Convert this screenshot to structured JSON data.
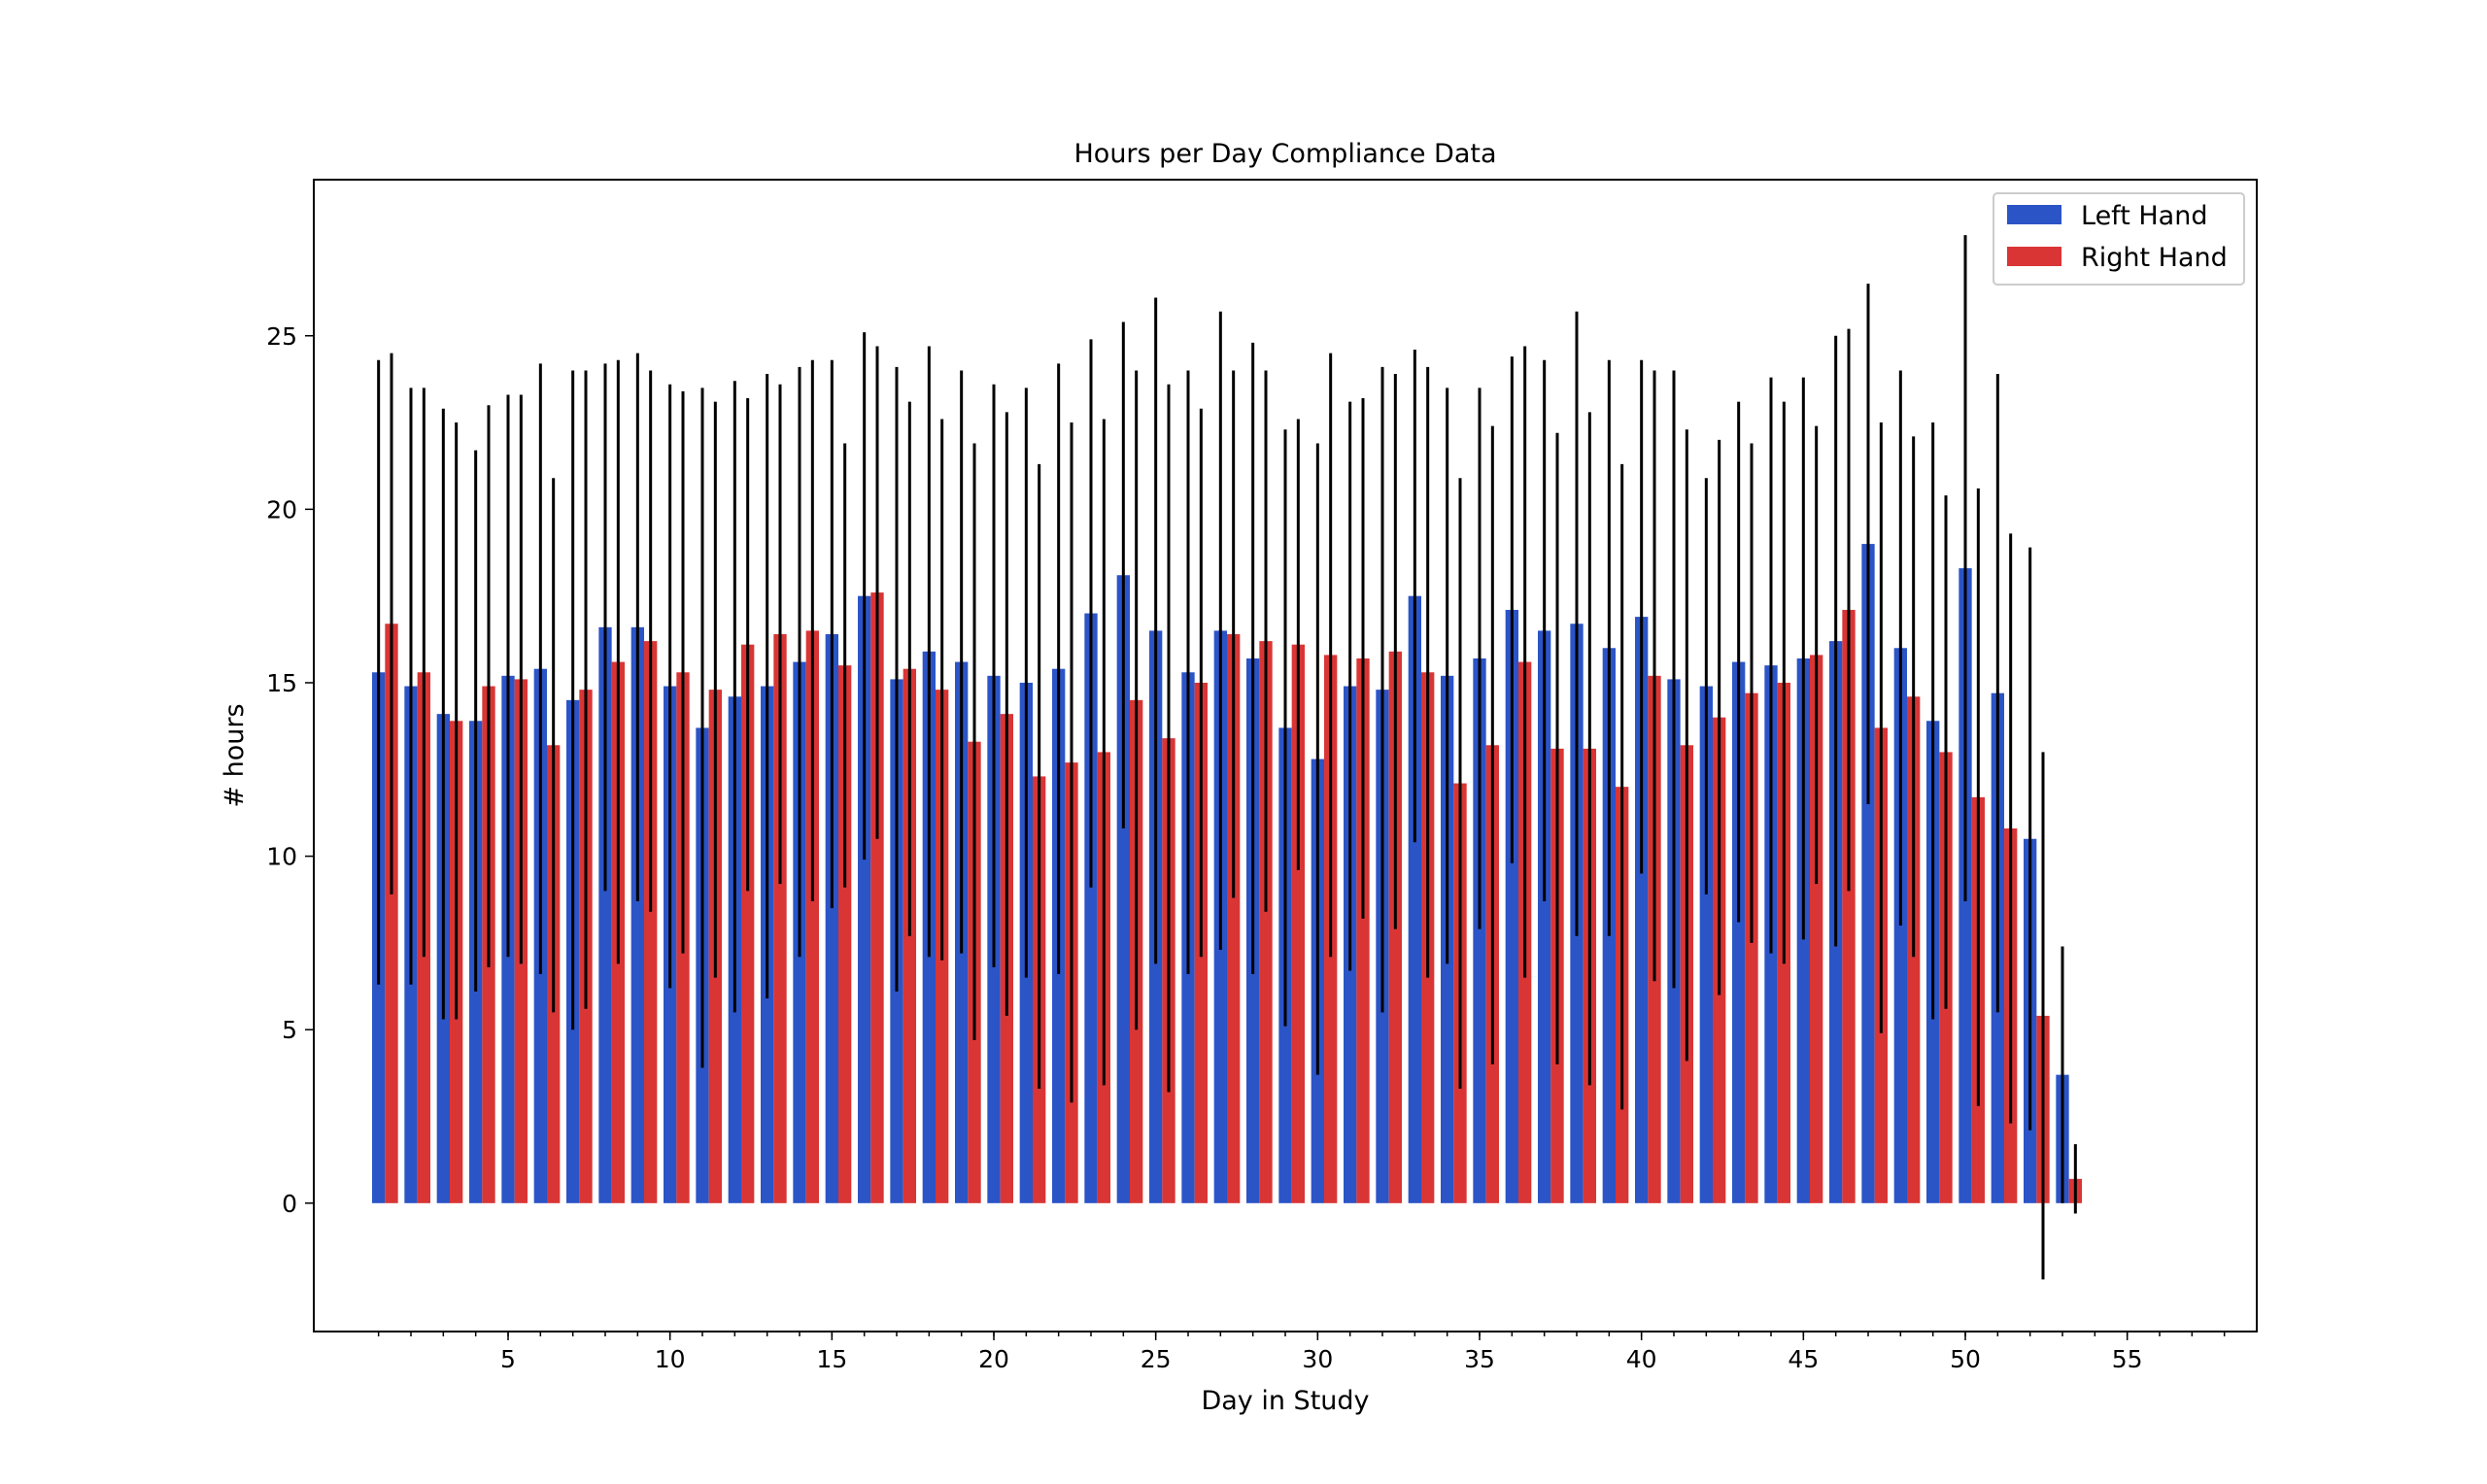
{
  "chart_data": {
    "type": "bar",
    "title": "Hours per Day Compliance Data",
    "xlabel": "Day in Study",
    "ylabel": "# hours",
    "xlim": [
      -1,
      59
    ],
    "ylim": [
      -3.7,
      29.5
    ],
    "x_ticks_major": [
      5,
      10,
      15,
      20,
      25,
      30,
      35,
      40,
      45,
      50,
      55
    ],
    "x_ticks_minor": [
      1,
      2,
      3,
      4,
      5,
      6,
      7,
      8,
      9,
      10,
      11,
      12,
      13,
      14,
      15,
      16,
      17,
      18,
      19,
      20,
      21,
      22,
      23,
      24,
      25,
      26,
      27,
      28,
      29,
      30,
      31,
      32,
      33,
      34,
      35,
      36,
      37,
      38,
      39,
      40,
      41,
      42,
      43,
      44,
      45,
      46,
      47,
      48,
      49,
      50,
      51,
      52,
      53,
      54,
      55,
      56,
      57,
      58
    ],
    "y_ticks": [
      0,
      5,
      10,
      15,
      20,
      25
    ],
    "grid": false,
    "legend_position": "top-right",
    "x": [
      1,
      2,
      3,
      4,
      5,
      6,
      7,
      8,
      9,
      10,
      11,
      12,
      13,
      14,
      15,
      16,
      17,
      18,
      19,
      20,
      21,
      22,
      23,
      24,
      25,
      26,
      27,
      28,
      29,
      30,
      31,
      32,
      33,
      34,
      35,
      36,
      37,
      38,
      39,
      40,
      41,
      42,
      43,
      44,
      45,
      46,
      47,
      48,
      49,
      50,
      51,
      52,
      53
    ],
    "series": [
      {
        "name": "Left Hand",
        "color": "#2b54c7",
        "values": [
          15.3,
          14.9,
          14.1,
          13.9,
          15.2,
          15.4,
          14.5,
          16.6,
          16.6,
          14.9,
          13.7,
          14.6,
          14.9,
          15.6,
          16.4,
          17.5,
          15.1,
          15.9,
          15.6,
          15.2,
          15.0,
          15.4,
          17.0,
          18.1,
          16.5,
          15.3,
          16.5,
          15.7,
          13.7,
          12.8,
          14.9,
          14.8,
          17.5,
          15.2,
          15.7,
          17.1,
          16.5,
          16.7,
          16.0,
          16.9,
          15.1,
          14.9,
          15.6,
          15.5,
          15.7,
          16.2,
          19.0,
          16.0,
          13.9,
          18.3,
          14.7,
          10.5,
          3.7
        ],
        "error": [
          9.0,
          8.6,
          8.8,
          7.8,
          8.1,
          8.8,
          9.5,
          7.6,
          7.9,
          8.7,
          9.8,
          9.1,
          9.0,
          8.5,
          7.9,
          7.6,
          9.0,
          8.8,
          8.4,
          8.4,
          8.5,
          8.8,
          7.9,
          7.3,
          9.6,
          8.7,
          9.2,
          9.1,
          8.6,
          9.1,
          8.2,
          9.3,
          7.1,
          8.3,
          7.8,
          7.3,
          7.8,
          9.0,
          8.3,
          7.4,
          8.9,
          6.0,
          7.5,
          8.3,
          8.1,
          8.8,
          7.5,
          8.0,
          8.6,
          9.6,
          9.2,
          8.4,
          3.7
        ]
      },
      {
        "name": "Right Hand",
        "color": "#d93535",
        "values": [
          16.7,
          15.3,
          13.9,
          14.9,
          15.1,
          13.2,
          14.8,
          15.6,
          16.2,
          15.3,
          14.8,
          16.1,
          16.4,
          16.5,
          15.5,
          17.6,
          15.4,
          14.8,
          13.3,
          14.1,
          12.3,
          12.7,
          13.0,
          14.5,
          13.4,
          15.0,
          16.4,
          16.2,
          16.1,
          15.8,
          15.7,
          15.9,
          15.3,
          12.1,
          13.2,
          15.6,
          13.1,
          13.1,
          12.0,
          15.2,
          13.2,
          14.0,
          14.7,
          15.0,
          15.8,
          17.1,
          13.7,
          14.6,
          13.0,
          11.7,
          10.8,
          5.4,
          0.7
        ]
      }
    ],
    "errorbars": {
      "Left Hand": [
        9.0,
        8.6,
        8.8,
        7.8,
        8.1,
        8.8,
        9.5,
        7.6,
        7.9,
        8.7,
        9.8,
        9.1,
        9.0,
        8.5,
        7.9,
        7.6,
        9.0,
        8.8,
        8.4,
        8.4,
        8.5,
        8.8,
        7.9,
        7.3,
        9.6,
        8.7,
        9.2,
        9.1,
        8.6,
        9.1,
        8.2,
        9.3,
        7.1,
        8.3,
        7.8,
        7.3,
        7.8,
        9.0,
        8.3,
        7.4,
        8.9,
        6.0,
        7.5,
        8.3,
        8.1,
        8.8,
        7.5,
        8.0,
        8.6,
        9.6,
        9.2,
        8.4,
        3.7
      ],
      "Right Hand": [
        7.8,
        8.2,
        8.6,
        8.1,
        8.2,
        7.7,
        9.2,
        8.7,
        7.8,
        8.1,
        8.3,
        7.1,
        7.2,
        7.8,
        6.4,
        7.1,
        7.7,
        7.8,
        8.6,
        8.7,
        9.0,
        9.8,
        9.6,
        9.5,
        10.2,
        7.9,
        7.6,
        7.8,
        6.5,
        8.7,
        7.5,
        8.0,
        8.8,
        8.8,
        9.2,
        9.1,
        9.1,
        9.7,
        9.3,
        8.8,
        9.1,
        8.0,
        7.2,
        8.1,
        6.6,
        8.1,
        8.8,
        7.5,
        7.4,
        8.9,
        8.5,
        7.6,
        1.0
      ]
    }
  }
}
